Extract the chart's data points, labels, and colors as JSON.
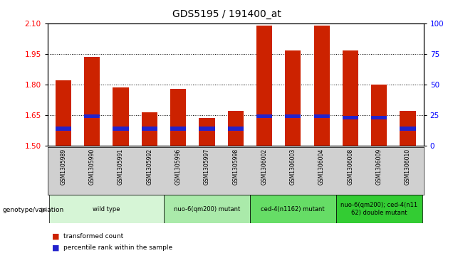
{
  "title": "GDS5195 / 191400_at",
  "samples": [
    "GSM1305989",
    "GSM1305990",
    "GSM1305991",
    "GSM1305992",
    "GSM1305996",
    "GSM1305997",
    "GSM1305998",
    "GSM1306002",
    "GSM1306003",
    "GSM1306004",
    "GSM1306008",
    "GSM1306009",
    "GSM1306010"
  ],
  "transformed_count": [
    1.82,
    1.935,
    1.785,
    1.665,
    1.78,
    1.635,
    1.67,
    2.09,
    1.965,
    2.09,
    1.965,
    1.8,
    1.67
  ],
  "percentile_rank_pos": [
    1.575,
    1.635,
    1.575,
    1.575,
    1.575,
    1.575,
    1.575,
    1.635,
    1.635,
    1.635,
    1.63,
    1.63,
    1.575
  ],
  "blue_bar_height": 0.018,
  "bar_bottom": 1.5,
  "ylim": [
    1.5,
    2.1
  ],
  "yticks_left": [
    1.5,
    1.65,
    1.8,
    1.95,
    2.1
  ],
  "yticks_right": [
    0,
    25,
    50,
    75,
    100
  ],
  "groups": [
    {
      "label": "wild type",
      "start": 0,
      "end": 3,
      "color": "#d6f5d6"
    },
    {
      "label": "nuo-6(qm200) mutant",
      "start": 4,
      "end": 6,
      "color": "#aaeaaa"
    },
    {
      "label": "ced-4(n1162) mutant",
      "start": 7,
      "end": 9,
      "color": "#66dd66"
    },
    {
      "label": "nuo-6(qm200); ced-4(n11\n62) double mutant",
      "start": 10,
      "end": 12,
      "color": "#33cc33"
    }
  ],
  "bar_color": "#cc2200",
  "percentile_color": "#2222cc",
  "xticklabel_bg": "#d0d0d0",
  "plot_bg": "#ffffff"
}
